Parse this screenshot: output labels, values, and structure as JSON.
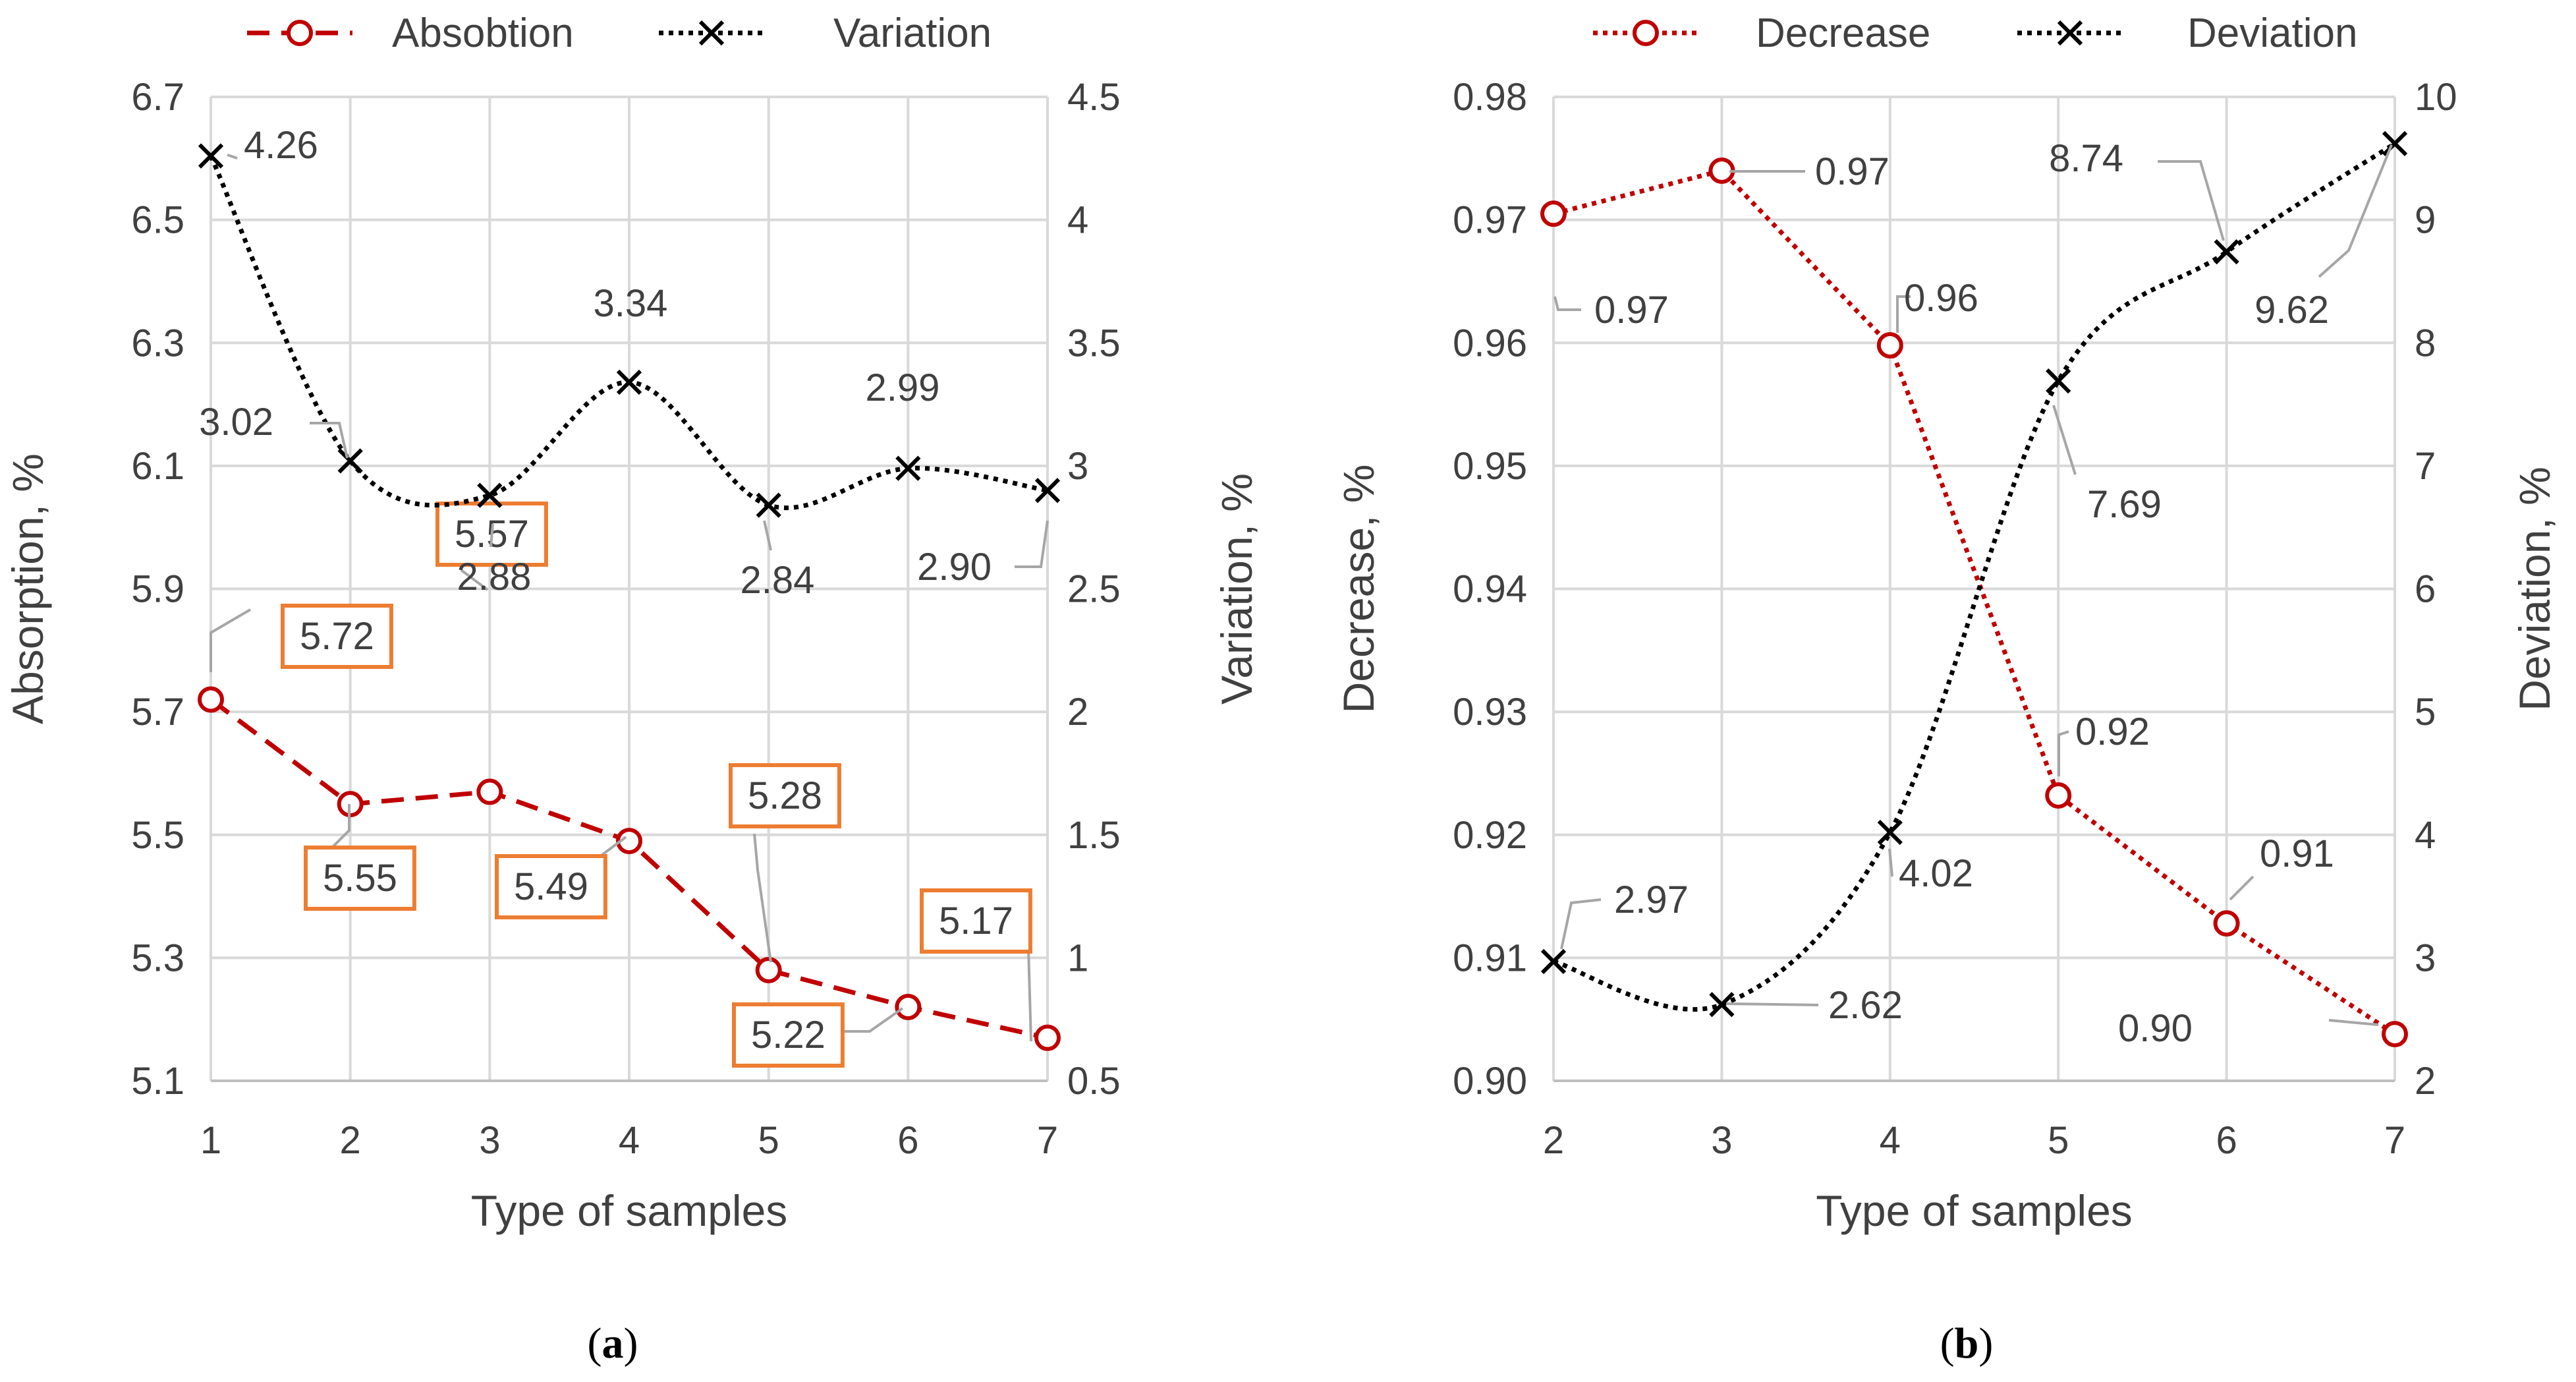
{
  "colors": {
    "grid": "#d9d9d9",
    "axis": "#bfbfbf",
    "text": "#404040",
    "red": "#c00000",
    "black": "#000000",
    "leader": "#a6a6a6",
    "orange": "#ed7d31"
  },
  "panels": [
    {
      "caption_label": "a"
    },
    {
      "caption_label": "b"
    }
  ],
  "chart_data": [
    {
      "type": "line",
      "x": [
        1,
        2,
        3,
        4,
        5,
        6,
        7
      ],
      "xlabel": "Type of samples",
      "ylabel": "Absorption, %",
      "y2label": "Variation, %",
      "ylim": [
        5.1,
        6.7
      ],
      "yticks": [
        "5.1",
        "5.3",
        "5.5",
        "5.7",
        "5.9",
        "6.1",
        "6.3",
        "6.5",
        "6.7"
      ],
      "y2lim": [
        0.5,
        4.5
      ],
      "y2ticks": [
        "0.5",
        "1",
        "1.5",
        "2",
        "2.5",
        "3",
        "3.5",
        "4",
        "4.5"
      ],
      "grid": true,
      "legend_position": "top",
      "series": [
        {
          "name": "Absobtion",
          "axis": "left",
          "style": "dashed",
          "marker": "circle",
          "values": [
            5.72,
            5.55,
            5.57,
            5.49,
            5.28,
            5.22,
            5.17
          ],
          "labels": [
            "5.72",
            "5.55",
            "5.57",
            "5.49",
            "5.28",
            "5.22",
            "5.17"
          ]
        },
        {
          "name": "Variation",
          "axis": "right",
          "style": "dotted",
          "marker": "x",
          "values": [
            4.26,
            3.02,
            2.88,
            3.34,
            2.84,
            2.99,
            2.9
          ],
          "labels": [
            "4.26",
            "3.02",
            "2.88",
            "3.34",
            "2.84",
            "2.99",
            "2.90"
          ]
        }
      ]
    },
    {
      "type": "line",
      "x": [
        2,
        3,
        4,
        5,
        6,
        7
      ],
      "xlabel": "Type of samples",
      "ylabel": "Decrease, %",
      "y2label": "Deviation, %",
      "ylim": [
        0.9,
        0.98
      ],
      "yticks": [
        "0.90",
        "0.91",
        "0.92",
        "0.93",
        "0.94",
        "0.95",
        "0.96",
        "0.97",
        "0.98"
      ],
      "y2lim": [
        2,
        10
      ],
      "y2ticks": [
        "2",
        "3",
        "4",
        "5",
        "6",
        "7",
        "8",
        "9",
        "10"
      ],
      "grid": true,
      "legend_position": "top",
      "series": [
        {
          "name": "Decrease",
          "axis": "left",
          "style": "dotted",
          "marker": "circle",
          "values": [
            0.9705,
            0.974,
            0.9598,
            0.9232,
            0.9128,
            0.9038
          ],
          "labels": [
            "0.97",
            "0.97",
            "0.96",
            "0.92",
            "0.91",
            "0.90"
          ]
        },
        {
          "name": "Deviation",
          "axis": "right",
          "style": "dotted",
          "marker": "x",
          "values": [
            2.97,
            2.62,
            4.02,
            7.69,
            8.74,
            9.62
          ],
          "labels": [
            "2.97",
            "2.62",
            "4.02",
            "7.69",
            "8.74",
            "9.62"
          ]
        }
      ]
    }
  ]
}
